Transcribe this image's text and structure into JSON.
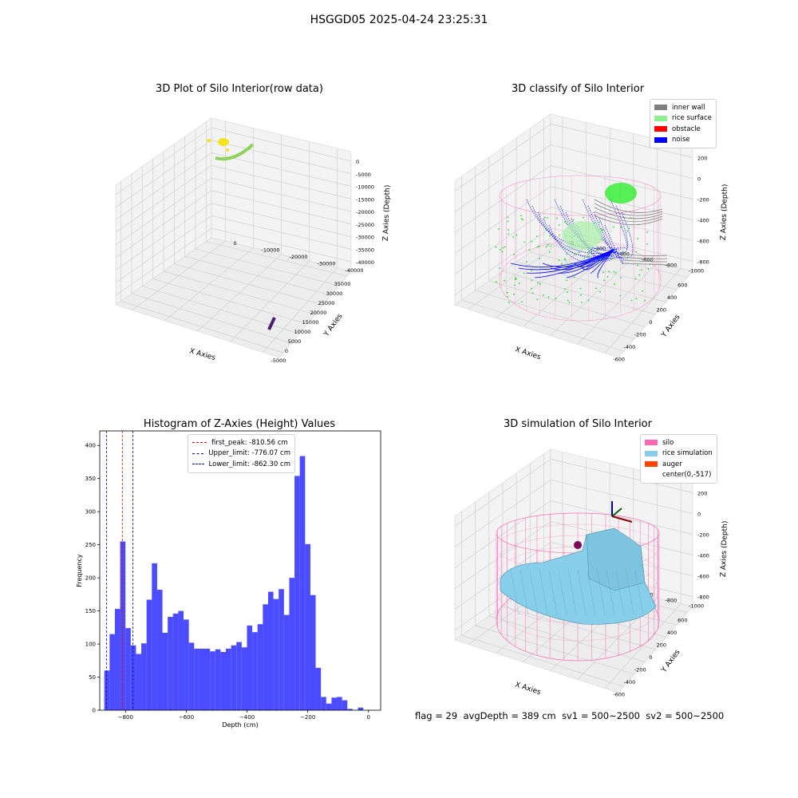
{
  "suptitle": "HSGGD05 2025-04-24 23:25:31",
  "footer": {
    "flag": "flag = 29",
    "avg_depth": "avgDepth = 389 cm",
    "sv1": "sv1 = 500~2500",
    "sv2": "sv2 = 500~2500"
  },
  "colors": {
    "histogram_bar": "#4b4bff",
    "inner_wall": "#808080",
    "rice_surface": "#90ee90",
    "obstacle": "#ff0000",
    "noise": "#0000ff",
    "silo": "#ff69b4",
    "rice_simulation": "#87ceeb",
    "auger": "#ff4500",
    "first_peak_line": "#ff0000",
    "limit_line": "#0000cd"
  },
  "chart_data": [
    {
      "type": "scatter",
      "title": "3D Plot of Silo Interior(row data)",
      "xlabel": "X Axies",
      "ylabel": "Y Axies",
      "zlabel": "Z Axies (Depth)",
      "x_ticks": [
        "-5000",
        "0",
        "5000",
        "10000",
        "15000",
        "20000",
        "25000",
        "30000",
        "35000"
      ],
      "y_ticks": [
        "0",
        "-10000",
        "-20000",
        "-30000",
        "-40000"
      ],
      "z_ticks": [
        "0",
        "-5000",
        "-10000",
        "-15000",
        "-20000",
        "-25000",
        "-30000",
        "-35000",
        "-40000"
      ],
      "xlim": [
        -5000,
        37000
      ],
      "ylim": [
        -42000,
        2000
      ],
      "zlim": [
        -43000,
        1000
      ],
      "grid": true
    },
    {
      "type": "scatter",
      "title": "3D classify of Silo Interior",
      "xlabel": "X Axies",
      "ylabel": "Y Axies",
      "zlabel": "Z Axies (Depth)",
      "x_ticks": [
        "-600",
        "-400",
        "-200",
        "0",
        "200",
        "400",
        "600"
      ],
      "y_ticks": [
        "0",
        "-200",
        "-400",
        "-600",
        "-800",
        "-1000"
      ],
      "z_ticks": [
        "200",
        "0",
        "-200",
        "-400",
        "-600",
        "-800"
      ],
      "xlim": [
        -650,
        650
      ],
      "ylim": [
        -1100,
        80
      ],
      "zlim": [
        -950,
        300
      ],
      "grid": true,
      "legend": {
        "position": "top-right",
        "entries": [
          "inner wall",
          "rice surface",
          "obstacle",
          "noise"
        ]
      }
    },
    {
      "type": "bar",
      "title": "Histogram of Z-Axies (Height) Values",
      "xlabel": "Depth (cm)",
      "ylabel": "Frequency",
      "xlim": [
        -885,
        40
      ],
      "ylim": [
        0,
        422
      ],
      "x_ticks": [
        -800,
        -600,
        -400,
        -200,
        0
      ],
      "y_ticks": [
        0,
        50,
        100,
        150,
        200,
        250,
        300,
        350,
        400
      ],
      "bin_start": -870,
      "bin_width": 17.4,
      "values": [
        60,
        115,
        153,
        255,
        124,
        98,
        85,
        101,
        167,
        222,
        182,
        117,
        141,
        146,
        150,
        137,
        102,
        93,
        93,
        93,
        89,
        92,
        88,
        93,
        98,
        103,
        95,
        128,
        118,
        130,
        160,
        179,
        168,
        183,
        144,
        200,
        354,
        384,
        251,
        174,
        64,
        20,
        10,
        19,
        20,
        15,
        2,
        0,
        4,
        0
      ],
      "vlines": [
        {
          "label": "first_peak: -810.56 cm",
          "x": -810.56,
          "color": "#ff0000"
        },
        {
          "label": "Upper_limit: -776.07 cm",
          "x": -776.07,
          "color": "#0000cd"
        },
        {
          "label": "Lower_limit: -862.30 cm",
          "x": -862.3,
          "color": "#0000cd"
        }
      ],
      "legend": {
        "position": "top-center"
      },
      "grid": false
    },
    {
      "type": "surface",
      "title": "3D simulation of Silo Interior",
      "xlabel": "X Axies",
      "ylabel": "Y Axies",
      "zlabel": "Z Axies (Depth)",
      "x_ticks": [
        "-600",
        "-400",
        "-200",
        "0",
        "200",
        "400",
        "600"
      ],
      "y_ticks": [
        "0",
        "-200",
        "-400",
        "-600",
        "-800",
        "-1000"
      ],
      "z_ticks": [
        "200",
        "0",
        "-200",
        "-400",
        "-600",
        "-800"
      ],
      "grid": true,
      "legend": {
        "position": "top-right",
        "entries": [
          "silo",
          "rice simulation",
          "auger",
          "center(0,-517)"
        ]
      }
    }
  ]
}
